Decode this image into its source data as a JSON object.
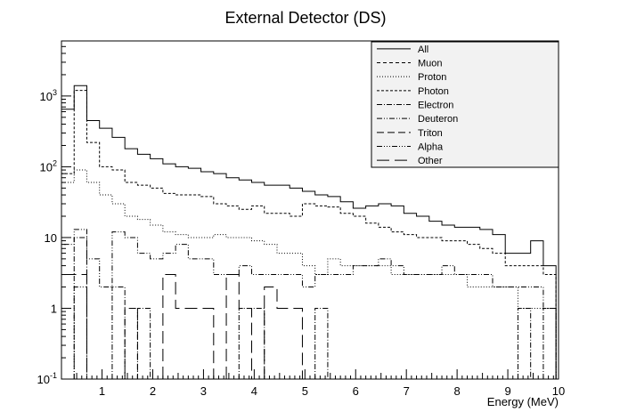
{
  "chart_data": {
    "type": "line",
    "title": "External Detector (DS)",
    "xlabel": "Energy (MeV)",
    "ylabel": "",
    "xlim": [
      0.2,
      10
    ],
    "ylim": [
      0.1,
      6000
    ],
    "y_scale": "log",
    "grid": false,
    "legend_position": "top-right",
    "x_tick_labels": [
      "1",
      "2",
      "3",
      "4",
      "5",
      "6",
      "7",
      "8",
      "9",
      "10"
    ],
    "y_tick_labels": [
      {
        "value": 0.1,
        "base": "10",
        "exp": "-1"
      },
      {
        "value": 1,
        "text": "1"
      },
      {
        "value": 10,
        "text": "10"
      },
      {
        "value": 100,
        "base": "10",
        "exp": "2"
      },
      {
        "value": 1000,
        "base": "10",
        "exp": "3"
      }
    ],
    "bin_edges": [
      0.2,
      0.45,
      0.7,
      0.95,
      1.2,
      1.45,
      1.7,
      1.95,
      2.2,
      2.45,
      2.7,
      2.95,
      3.2,
      3.45,
      3.7,
      3.95,
      4.2,
      4.45,
      4.7,
      4.95,
      5.2,
      5.45,
      5.7,
      5.95,
      6.2,
      6.45,
      6.7,
      6.95,
      7.2,
      7.45,
      7.7,
      7.95,
      8.2,
      8.45,
      8.7,
      8.95,
      9.2,
      9.45,
      9.7,
      9.95
    ],
    "series": [
      {
        "name": "All",
        "dash": "",
        "values": [
          650,
          1400,
          450,
          350,
          260,
          180,
          150,
          130,
          110,
          100,
          95,
          85,
          80,
          70,
          65,
          60,
          55,
          55,
          50,
          45,
          40,
          38,
          32,
          26,
          28,
          30,
          28,
          22,
          20,
          17,
          15,
          14,
          14,
          13,
          11,
          6,
          6,
          9,
          4
        ]
      },
      {
        "name": "Muon",
        "dash": "4,3",
        "values": [
          0,
          0,
          0,
          0,
          0,
          0,
          0,
          0,
          0,
          0,
          0,
          0,
          0,
          0,
          0,
          0,
          0,
          0,
          0,
          0,
          0,
          0,
          0,
          0,
          0,
          0,
          0,
          0,
          0,
          0,
          0,
          0,
          0,
          0,
          0,
          0,
          0,
          0,
          0
        ]
      },
      {
        "name": "Proton",
        "dash": "1,2",
        "values": [
          60,
          90,
          60,
          40,
          30,
          20,
          18,
          15,
          12,
          11,
          10,
          10,
          11,
          10,
          10,
          9,
          8,
          6,
          6,
          4,
          3,
          5,
          4,
          4,
          4,
          4,
          3,
          3,
          3,
          3,
          3,
          3,
          2,
          2,
          2,
          2,
          1,
          1,
          1
        ]
      },
      {
        "name": "Photon",
        "dash": "3,2",
        "values": [
          80,
          1200,
          220,
          100,
          90,
          60,
          55,
          50,
          42,
          40,
          40,
          38,
          30,
          28,
          25,
          28,
          22,
          22,
          20,
          30,
          28,
          27,
          22,
          20,
          16,
          14,
          12,
          11,
          10,
          10,
          9,
          9,
          8,
          7,
          6,
          4,
          4,
          4,
          3
        ]
      },
      {
        "name": "Electron",
        "dash": "6,2,1,2",
        "values": [
          0,
          10,
          0,
          0,
          2,
          0,
          1,
          0,
          0,
          0,
          0,
          0,
          0,
          0,
          1,
          1,
          0,
          0,
          0,
          0,
          1,
          0,
          0,
          0,
          0,
          0,
          0,
          0,
          0,
          0,
          0,
          0,
          0,
          0,
          0,
          0,
          1,
          0,
          1
        ]
      },
      {
        "name": "Deuteron",
        "dash": "6,2,1,2,1,2",
        "values": [
          8,
          13,
          5,
          2,
          12,
          10,
          6,
          5,
          6,
          8,
          5,
          5,
          3,
          3,
          4,
          3,
          3,
          3,
          3,
          2,
          3,
          3,
          3,
          4,
          4,
          5,
          4,
          3,
          3,
          3,
          4,
          3,
          3,
          3,
          2,
          2,
          2,
          2,
          1
        ]
      },
      {
        "name": "Triton",
        "dash": "8,4",
        "values": [
          0,
          0,
          0,
          0,
          0,
          1,
          0,
          0,
          0,
          0,
          0,
          0,
          0,
          0,
          0,
          0,
          0,
          0,
          0,
          0,
          0,
          0,
          0,
          0,
          0,
          0,
          0,
          0,
          0,
          0,
          0,
          0,
          0,
          0,
          0,
          0,
          0,
          0,
          0
        ]
      },
      {
        "name": "Alpha",
        "dash": "6,2,1,2,1,2,1,2",
        "values": [
          0,
          2,
          0,
          0,
          0,
          0,
          0,
          0,
          0,
          0,
          0,
          0,
          0,
          0,
          0,
          0,
          0,
          0,
          0,
          0,
          0,
          0,
          0,
          0,
          0,
          0,
          0,
          0,
          0,
          0,
          0,
          0,
          0,
          0,
          0,
          0,
          0,
          0,
          0
        ]
      },
      {
        "name": "Other",
        "dash": "14,6",
        "values": [
          3,
          3,
          0,
          0,
          0,
          0,
          0,
          0,
          3,
          1,
          1,
          1,
          0,
          3,
          1,
          0,
          2,
          1,
          1,
          0,
          0,
          0,
          0,
          0,
          0,
          0,
          0,
          0,
          0,
          0,
          0,
          0,
          0,
          0,
          0,
          0,
          0,
          0,
          0
        ]
      }
    ]
  }
}
